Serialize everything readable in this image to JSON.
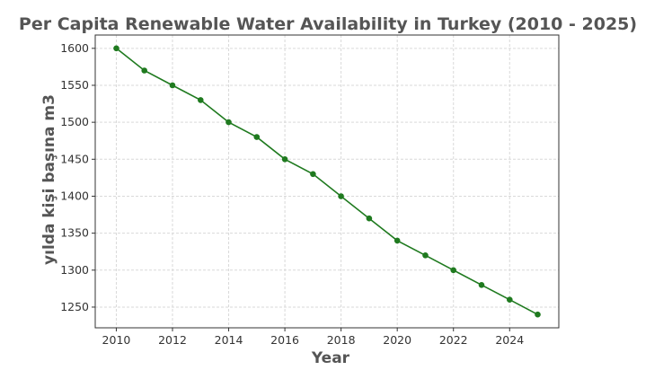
{
  "chart_data": {
    "type": "line",
    "title": "Per Capita Renewable Water Availability in Turkey (2010 - 2025)",
    "xlabel": "Year",
    "ylabel": "yılda kişi başına m3",
    "x": [
      2010,
      2011,
      2012,
      2013,
      2014,
      2015,
      2016,
      2017,
      2018,
      2019,
      2020,
      2021,
      2022,
      2023,
      2024,
      2025
    ],
    "series": [
      {
        "values": [
          1600,
          1570,
          1550,
          1530,
          1500,
          1480,
          1450,
          1430,
          1400,
          1370,
          1340,
          1320,
          1300,
          1280,
          1260,
          1240
        ]
      }
    ],
    "xticks": [
      2010,
      2012,
      2014,
      2016,
      2018,
      2020,
      2022,
      2024
    ],
    "yticks": [
      1250,
      1300,
      1350,
      1400,
      1450,
      1500,
      1550,
      1600
    ],
    "xlim": [
      2009.25,
      2025.75
    ],
    "ylim": [
      1222,
      1618
    ],
    "grid": true,
    "colors": {
      "line": "#1f7a1f",
      "grid": "#d9d9d9",
      "text": "#555555"
    }
  }
}
